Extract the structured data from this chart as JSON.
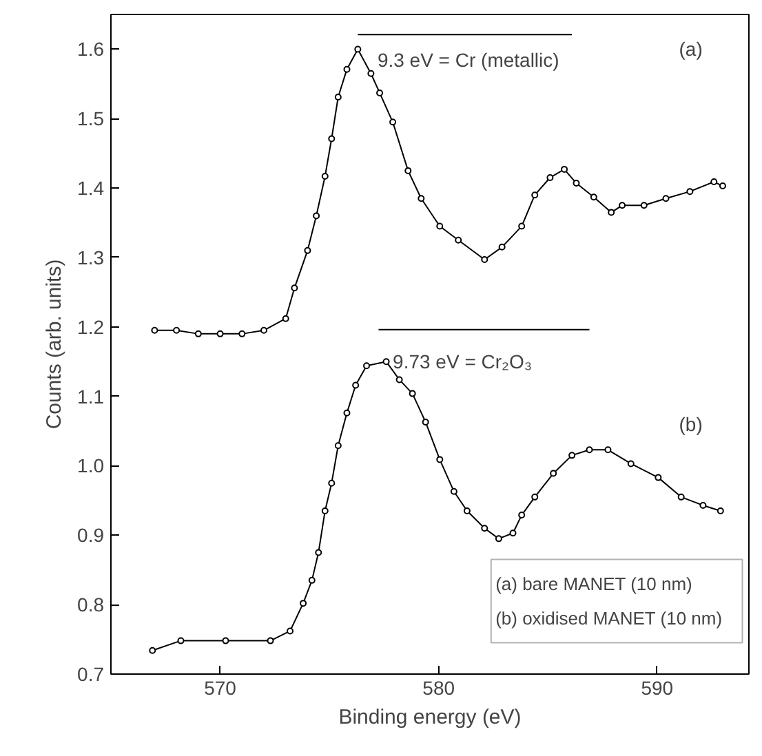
{
  "chart_data": {
    "type": "line",
    "xlabel": "Binding energy (eV)",
    "ylabel": "Counts (arb. units)",
    "xlim": [
      565,
      594.2
    ],
    "ylim": [
      0.7,
      1.65
    ],
    "xticks": [
      570,
      580,
      590
    ],
    "yticks": [
      0.7,
      0.8,
      0.9,
      {
        "value": 1.0,
        "label": "1.0"
      },
      1.1,
      1.2,
      1.3,
      1.4,
      1.5,
      1.6
    ],
    "grid": false,
    "marker": "circle",
    "line_style": "solid",
    "series": [
      {
        "color": "#000000",
        "x": [
          567,
          568,
          569,
          570,
          571,
          572,
          573,
          573.4,
          574,
          574.4,
          574.8,
          575.1,
          575.4,
          575.8,
          576.3,
          576.9,
          577.3,
          577.9,
          578.6,
          579.2,
          580.05,
          580.9,
          582.1,
          582.9,
          583.8,
          584.4,
          585.1,
          585.75,
          586.3,
          587.1,
          587.9,
          588.4,
          589.4,
          590.4,
          591.5,
          592.6,
          593
        ],
        "values": [
          1.195,
          1.195,
          1.19,
          1.19,
          1.19,
          1.195,
          1.212,
          1.256,
          1.31,
          1.36,
          1.417,
          1.471,
          1.531,
          1.571,
          1.6,
          1.565,
          1.537,
          1.495,
          1.425,
          1.385,
          1.345,
          1.325,
          1.297,
          1.315,
          1.345,
          1.39,
          1.415,
          1.427,
          1.407,
          1.387,
          1.365,
          1.375,
          1.375,
          1.385,
          1.395,
          1.409,
          1.403
        ]
      },
      {
        "color": "#000000",
        "x": [
          566.9,
          568.2,
          570.25,
          572.3,
          573.2,
          573.8,
          574.2,
          574.5,
          574.8,
          575.1,
          575.4,
          575.8,
          576.2,
          576.7,
          577.6,
          578.2,
          578.8,
          579.4,
          580.05,
          580.7,
          581.3,
          582.1,
          582.75,
          583.4,
          583.8,
          584.4,
          585.25,
          586.1,
          586.9,
          587.75,
          588.8,
          590.05,
          591.1,
          592.1,
          592.9
        ],
        "values": [
          0.734,
          0.748,
          0.748,
          0.748,
          0.762,
          0.802,
          0.835,
          0.875,
          0.935,
          0.975,
          1.029,
          1.076,
          1.116,
          1.144,
          1.15,
          1.124,
          1.104,
          1.063,
          1.009,
          0.963,
          0.935,
          0.91,
          0.895,
          0.903,
          0.929,
          0.955,
          0.989,
          1.015,
          1.023,
          1.023,
          1.003,
          0.983,
          0.955,
          0.943,
          0.935
        ]
      },
      {
        "color": "#000000",
        "marker": "none",
        "x": [
          576.3,
          586.1
        ],
        "values": [
          1.621,
          1.621
        ]
      },
      {
        "color": "#000000",
        "marker": "none",
        "x": [
          577.25,
          586.9
        ],
        "values": [
          1.196,
          1.196
        ]
      }
    ],
    "annotations": [
      "9.3 eV = Cr (metallic)",
      {
        "text": "9.73 eV = Cr₂O₃",
        "x": 577.9,
        "y": 1.15
      },
      "(a)",
      "(b)",
      "(a) bare MANET (10 nm)",
      "(b) oxidised MANET (10 nm)"
    ]
  }
}
